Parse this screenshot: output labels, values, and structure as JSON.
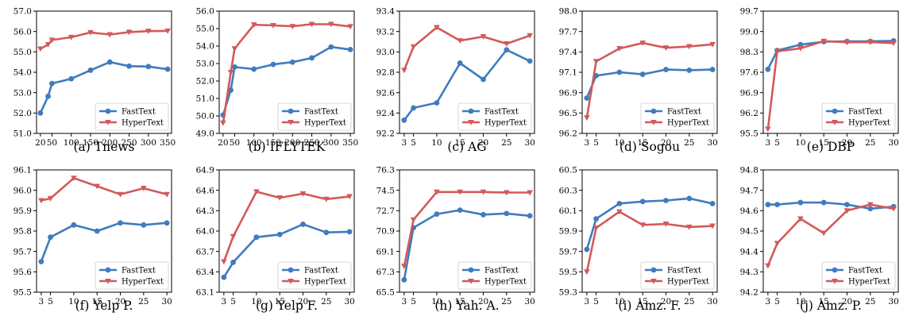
{
  "colors": {
    "FastText": "#3f7bbf",
    "HyperText": "#d2595a"
  },
  "legend_placement": "lower-right",
  "chart_data": [
    {
      "type": "line",
      "caption": "(a) Tnews",
      "x": [
        20,
        40,
        50,
        100,
        150,
        200,
        250,
        300,
        350
      ],
      "xticks": [
        20,
        50,
        100,
        150,
        200,
        250,
        300,
        350
      ],
      "xlim": [
        10,
        360
      ],
      "yticks": [
        "51.0",
        "52.0",
        "53.0",
        "54.0",
        "55.0",
        "56.0",
        "57.0"
      ],
      "ylim": [
        51.0,
        57.0
      ],
      "series": [
        {
          "name": "FastText",
          "values": [
            52.0,
            52.82,
            53.45,
            53.68,
            54.1,
            54.5,
            54.3,
            54.28,
            54.15
          ]
        },
        {
          "name": "HyperText",
          "values": [
            55.15,
            55.36,
            55.58,
            55.72,
            55.95,
            55.85,
            55.97,
            56.02,
            56.03
          ]
        }
      ]
    },
    {
      "type": "line",
      "caption": "(b) IFLYTEK",
      "x": [
        20,
        40,
        50,
        100,
        150,
        200,
        250,
        300,
        350
      ],
      "xticks": [
        20,
        50,
        100,
        150,
        200,
        250,
        300,
        350
      ],
      "xlim": [
        10,
        360
      ],
      "yticks": [
        "49.0",
        "50.0",
        "51.0",
        "52.0",
        "53.0",
        "54.0",
        "55.0",
        "56.0"
      ],
      "ylim": [
        49.0,
        56.0
      ],
      "series": [
        {
          "name": "FastText",
          "values": [
            50.05,
            51.48,
            52.8,
            52.68,
            52.95,
            53.08,
            53.32,
            53.95,
            53.8
          ]
        },
        {
          "name": "HyperText",
          "values": [
            49.6,
            52.5,
            53.85,
            55.22,
            55.18,
            55.13,
            55.25,
            55.25,
            55.12
          ]
        }
      ]
    },
    {
      "type": "line",
      "caption": "(c) AG",
      "x": [
        3,
        5,
        10,
        15,
        20,
        25,
        30
      ],
      "xticks": [
        3,
        5,
        10,
        15,
        20,
        25,
        30
      ],
      "xlim": [
        2,
        31
      ],
      "yticks": [
        "92.2",
        "92.4",
        "92.6",
        "92.8",
        "93.0",
        "93.2",
        "93.4"
      ],
      "ylim": [
        92.2,
        93.4
      ],
      "series": [
        {
          "name": "FastText",
          "values": [
            92.33,
            92.45,
            92.5,
            92.89,
            92.73,
            93.02,
            92.91
          ]
        },
        {
          "name": "HyperText",
          "values": [
            92.82,
            93.05,
            93.24,
            93.11,
            93.15,
            93.08,
            93.16
          ]
        }
      ]
    },
    {
      "type": "line",
      "caption": "(d) Sogou",
      "x": [
        3,
        5,
        10,
        15,
        20,
        25,
        30
      ],
      "xticks": [
        3,
        5,
        10,
        15,
        20,
        25,
        30
      ],
      "xlim": [
        2,
        31
      ],
      "yticks": [
        "96.2",
        "96.5",
        "96.9",
        "97.1",
        "97.4",
        "97.7",
        "98.0"
      ],
      "ylim": [
        96.2,
        98.0
      ],
      "series": [
        {
          "name": "FastText",
          "values": [
            96.72,
            97.05,
            97.1,
            97.07,
            97.14,
            97.13,
            97.14
          ]
        },
        {
          "name": "HyperText",
          "values": [
            96.43,
            97.26,
            97.45,
            97.53,
            97.46,
            97.48,
            97.51
          ]
        }
      ]
    },
    {
      "type": "line",
      "caption": "(e) DBP",
      "x": [
        3,
        5,
        10,
        15,
        20,
        25,
        30
      ],
      "xticks": [
        3,
        5,
        10,
        15,
        20,
        25,
        30
      ],
      "xlim": [
        2,
        31
      ],
      "yticks": [
        "95.5",
        "96.2",
        "96.9",
        "97.6",
        "98.3",
        "99.0",
        "99.7"
      ],
      "ylim": [
        95.5,
        99.7
      ],
      "series": [
        {
          "name": "FastText",
          "values": [
            97.7,
            98.35,
            98.55,
            98.65,
            98.66,
            98.66,
            98.68
          ]
        },
        {
          "name": "HyperText",
          "values": [
            95.65,
            98.32,
            98.42,
            98.67,
            98.63,
            98.64,
            98.6
          ]
        }
      ]
    },
    {
      "type": "line",
      "caption": "(f) Yelp P.",
      "x": [
        3,
        5,
        10,
        15,
        20,
        25,
        30
      ],
      "xticks": [
        3,
        5,
        10,
        15,
        20,
        25,
        30
      ],
      "xlim": [
        2,
        31
      ],
      "yticks": [
        "95.5",
        "95.6",
        "95.7",
        "95.8",
        "95.9",
        "96.0",
        "96.1"
      ],
      "ylim": [
        95.5,
        96.1
      ],
      "series": [
        {
          "name": "FastText",
          "values": [
            95.65,
            95.77,
            95.83,
            95.8,
            95.84,
            95.83,
            95.84
          ]
        },
        {
          "name": "HyperText",
          "values": [
            95.95,
            95.96,
            96.06,
            96.02,
            95.98,
            96.01,
            95.98
          ]
        }
      ]
    },
    {
      "type": "line",
      "caption": "(g) Yelp F.",
      "x": [
        3,
        5,
        10,
        15,
        20,
        25,
        30
      ],
      "xticks": [
        3,
        5,
        10,
        15,
        20,
        25,
        30
      ],
      "xlim": [
        2,
        31
      ],
      "yticks": [
        "63.1",
        "63.4",
        "63.7",
        "64.0",
        "64.3",
        "64.6",
        "64.9"
      ],
      "ylim": [
        63.1,
        64.9
      ],
      "series": [
        {
          "name": "FastText",
          "values": [
            63.32,
            63.54,
            63.91,
            63.95,
            64.1,
            63.98,
            63.99
          ]
        },
        {
          "name": "HyperText",
          "values": [
            63.55,
            63.92,
            64.58,
            64.49,
            64.55,
            64.47,
            64.51
          ]
        }
      ]
    },
    {
      "type": "line",
      "caption": "(h) Yah. A.",
      "x": [
        3,
        5,
        10,
        15,
        20,
        25,
        30
      ],
      "xticks": [
        3,
        5,
        10,
        15,
        20,
        25,
        30
      ],
      "xlim": [
        2,
        31
      ],
      "yticks": [
        "65.5",
        "67.3",
        "69.1",
        "70.9",
        "72.7",
        "74.5",
        "76.3"
      ],
      "ylim": [
        65.5,
        76.3
      ],
      "series": [
        {
          "name": "FastText",
          "values": [
            66.6,
            71.2,
            72.4,
            72.75,
            72.35,
            72.45,
            72.25
          ]
        },
        {
          "name": "HyperText",
          "values": [
            67.8,
            71.9,
            74.35,
            74.35,
            74.35,
            74.3,
            74.3
          ]
        }
      ]
    },
    {
      "type": "line",
      "caption": "(i) Amz. F.",
      "x": [
        3,
        5,
        10,
        15,
        20,
        25,
        30
      ],
      "xticks": [
        3,
        5,
        10,
        15,
        20,
        25,
        30
      ],
      "xlim": [
        2,
        31
      ],
      "yticks": [
        "59.3",
        "59.5",
        "59.7",
        "59.9",
        "60.1",
        "60.3",
        "60.5"
      ],
      "ylim": [
        59.3,
        60.5
      ],
      "series": [
        {
          "name": "FastText",
          "values": [
            59.72,
            60.02,
            60.17,
            60.19,
            60.2,
            60.22,
            60.17
          ]
        },
        {
          "name": "HyperText",
          "values": [
            59.5,
            59.93,
            60.09,
            59.96,
            59.97,
            59.94,
            59.95
          ]
        }
      ]
    },
    {
      "type": "line",
      "caption": "(j) Amz. P.",
      "x": [
        3,
        5,
        10,
        15,
        20,
        25,
        30
      ],
      "xticks": [
        3,
        5,
        10,
        15,
        20,
        25,
        30
      ],
      "xlim": [
        2,
        31
      ],
      "yticks": [
        "94.2",
        "94.3",
        "94.4",
        "94.5",
        "94.6",
        "94.7",
        "94.8"
      ],
      "ylim": [
        94.2,
        94.8
      ],
      "series": [
        {
          "name": "FastText",
          "values": [
            94.63,
            94.63,
            94.64,
            94.64,
            94.63,
            94.61,
            94.62
          ]
        },
        {
          "name": "HyperText",
          "values": [
            94.33,
            94.44,
            94.56,
            94.49,
            94.6,
            94.63,
            94.61
          ]
        }
      ]
    }
  ]
}
